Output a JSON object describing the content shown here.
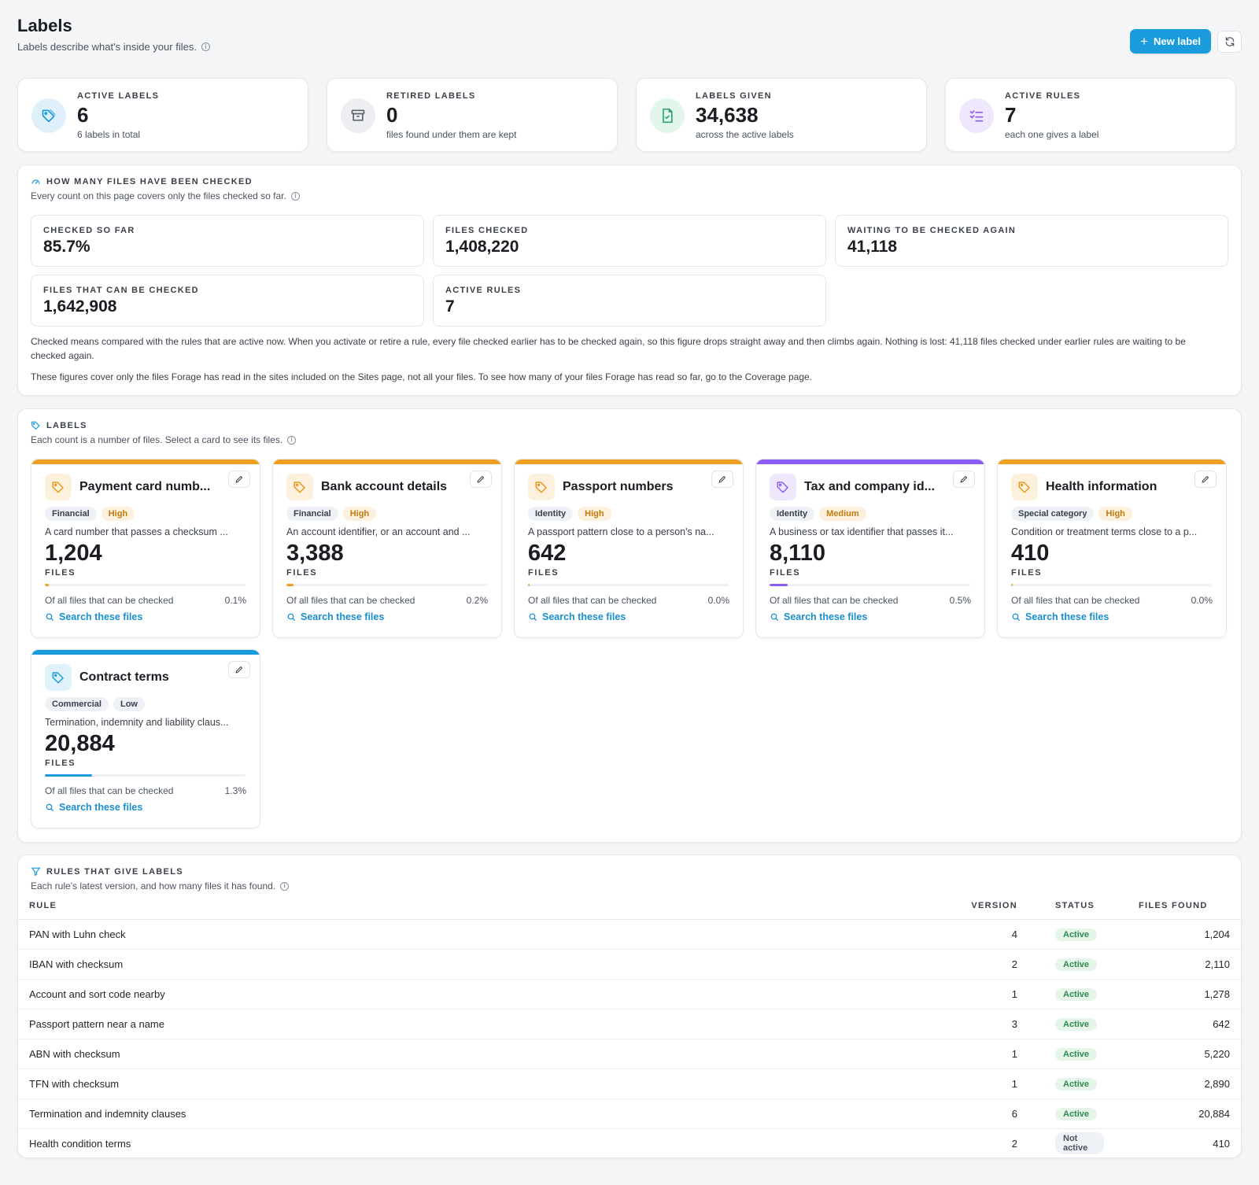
{
  "header": {
    "title": "Labels",
    "subtitle": "Labels describe what's inside your files.",
    "new_label_button": "New label"
  },
  "stats": [
    {
      "label": "ACTIVE LABELS",
      "value": "6",
      "sub": "6 labels in total",
      "icon": "tag-icon",
      "color": "#1a9bdc"
    },
    {
      "label": "RETIRED LABELS",
      "value": "0",
      "sub": "files found under them are kept",
      "icon": "archive-icon",
      "color": "#5d6470"
    },
    {
      "label": "LABELS GIVEN",
      "value": "34,638",
      "sub": "across the active labels",
      "icon": "file-check-icon",
      "color": "#2fa36b"
    },
    {
      "label": "ACTIVE RULES",
      "value": "7",
      "sub": "each one gives a label",
      "icon": "list-check-icon",
      "color": "#8b5cf6"
    }
  ],
  "checked": {
    "title": "HOW MANY FILES HAVE BEEN CHECKED",
    "subtitle": "Every count on this page covers only the files checked so far.",
    "metrics": [
      {
        "label": "CHECKED SO FAR",
        "value": "85.7%"
      },
      {
        "label": "FILES CHECKED",
        "value": "1,408,220"
      },
      {
        "label": "WAITING TO BE CHECKED AGAIN",
        "value": "41,118"
      },
      {
        "label": "FILES THAT CAN BE CHECKED",
        "value": "1,642,908"
      },
      {
        "label": "ACTIVE RULES",
        "value": "7"
      }
    ],
    "note1": "Checked means compared with the rules that are active now. When you activate or retire a rule, every file checked earlier has to be checked again, so this figure drops straight away and then climbs again. Nothing is lost: 41,118 files checked under earlier rules are waiting to be checked again.",
    "note2": "These figures cover only the files Forage has read in the sites included on the Sites page, not all your files. To see how many of your files Forage has read so far, go to the Coverage page."
  },
  "labels": {
    "title": "LABELS",
    "subtitle": "Each count is a number of files. Select a card to see its files.",
    "files_word": "FILES",
    "of_all_text": "Of all files that can be checked",
    "search_text": "Search these files",
    "cards": [
      {
        "name": "Payment card numb...",
        "category": "Financial",
        "severity": "High",
        "desc": "A card number that passes a checksum ...",
        "count": "1,204",
        "pct": "0.1%",
        "fraction": 0.001,
        "accent": "#f0a020",
        "icon_bg": "#fdf0dc",
        "icon_color": "#e59a1e"
      },
      {
        "name": "Bank account details",
        "category": "Financial",
        "severity": "High",
        "desc": "An account identifier, or an account and ...",
        "count": "3,388",
        "pct": "0.2%",
        "fraction": 0.002,
        "accent": "#f0a020",
        "icon_bg": "#fdf0dc",
        "icon_color": "#e59a1e"
      },
      {
        "name": "Passport numbers",
        "category": "Identity",
        "severity": "High",
        "desc": "A passport pattern close to a person's na...",
        "count": "642",
        "pct": "0.0%",
        "fraction": 0.0,
        "accent": "#f0a020",
        "icon_bg": "#fdf0dc",
        "icon_color": "#e59a1e"
      },
      {
        "name": "Tax and company id...",
        "category": "Identity",
        "severity": "Medium",
        "desc": "A business or tax identifier that passes it...",
        "count": "8,110",
        "pct": "0.5%",
        "fraction": 0.005,
        "accent": "#8b5cf6",
        "icon_bg": "#efe8fd",
        "icon_color": "#8b5cf6"
      },
      {
        "name": "Health information",
        "category": "Special category",
        "severity": "High",
        "desc": "Condition or treatment terms close to a p...",
        "count": "410",
        "pct": "0.0%",
        "fraction": 0.0,
        "accent": "#f0a020",
        "icon_bg": "#fdf0dc",
        "icon_color": "#e59a1e"
      },
      {
        "name": "Contract terms",
        "category": "Commercial",
        "severity": "Low",
        "desc": "Termination, indemnity and liability claus...",
        "count": "20,884",
        "pct": "1.3%",
        "fraction": 0.013,
        "accent": "#1a9bdc",
        "icon_bg": "#e0f1fb",
        "icon_color": "#1a9bdc"
      }
    ]
  },
  "rules": {
    "title": "RULES THAT GIVE LABELS",
    "subtitle": "Each rule's latest version, and how many files it has found.",
    "columns": {
      "rule": "RULE",
      "version": "VERSION",
      "status": "STATUS",
      "found": "FILES FOUND"
    },
    "rows": [
      {
        "rule": "PAN with Luhn check",
        "version": "4",
        "status": "Active",
        "found": "1,204"
      },
      {
        "rule": "IBAN with checksum",
        "version": "2",
        "status": "Active",
        "found": "2,110"
      },
      {
        "rule": "Account and sort code nearby",
        "version": "1",
        "status": "Active",
        "found": "1,278"
      },
      {
        "rule": "Passport pattern near a name",
        "version": "3",
        "status": "Active",
        "found": "642"
      },
      {
        "rule": "ABN with checksum",
        "version": "1",
        "status": "Active",
        "found": "5,220"
      },
      {
        "rule": "TFN with checksum",
        "version": "1",
        "status": "Active",
        "found": "2,890"
      },
      {
        "rule": "Termination and indemnity clauses",
        "version": "6",
        "status": "Active",
        "found": "20,884"
      },
      {
        "rule": "Health condition terms",
        "version": "2",
        "status": "Not active",
        "found": "410"
      }
    ]
  }
}
